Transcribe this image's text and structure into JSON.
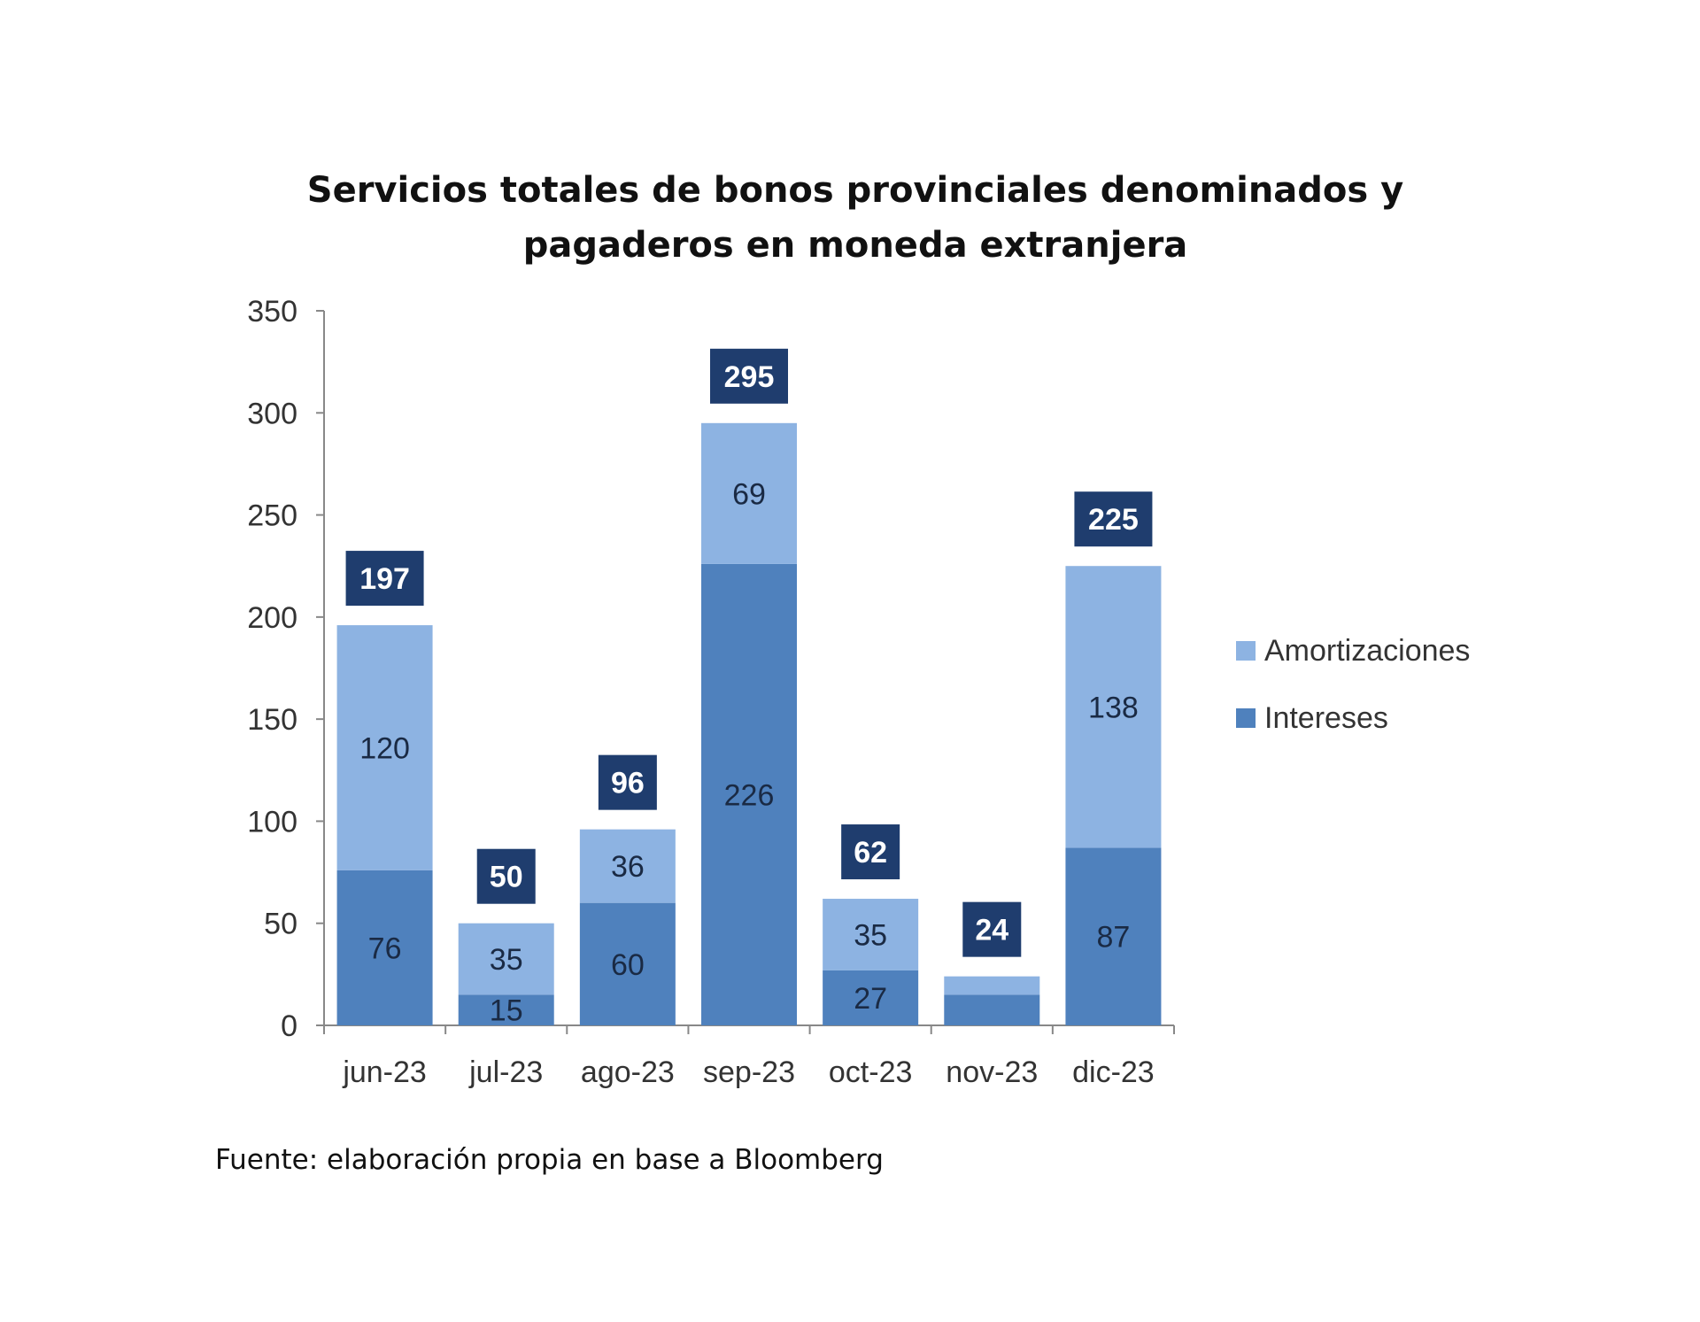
{
  "chart_data": {
    "type": "bar",
    "stacked": true,
    "title": [
      "Servicios totales de bonos provinciales denominados y",
      "pagaderos en moneda extranjera"
    ],
    "xlabel": "",
    "ylabel": "",
    "ylim": [
      0,
      350
    ],
    "yticks": [
      0,
      50,
      100,
      150,
      200,
      250,
      300,
      350
    ],
    "categories": [
      "jun-23",
      "jul-23",
      "ago-23",
      "sep-23",
      "oct-23",
      "nov-23",
      "dic-23"
    ],
    "series": [
      {
        "name": "Intereses",
        "color": "#4f81bd",
        "values": [
          76,
          15,
          60,
          226,
          27,
          15,
          87
        ],
        "labels": [
          "76",
          "15",
          "60",
          "226",
          "27",
          null,
          "87"
        ]
      },
      {
        "name": "Amortizaciones",
        "color": "#8db3e2",
        "values": [
          120,
          35,
          36,
          69,
          35,
          9,
          138
        ],
        "labels": [
          "120",
          "35",
          "36",
          "69",
          "35",
          null,
          "138"
        ]
      }
    ],
    "totals": [
      "197",
      "50",
      "96",
      "295",
      "62",
      "24",
      "225"
    ],
    "total_box_color": "#1f3d6e",
    "legend": {
      "position": "right",
      "entries": [
        "Amortizaciones",
        "Intereses"
      ]
    },
    "grid": false
  },
  "source": "Fuente: elaboración propia en base a Bloomberg"
}
